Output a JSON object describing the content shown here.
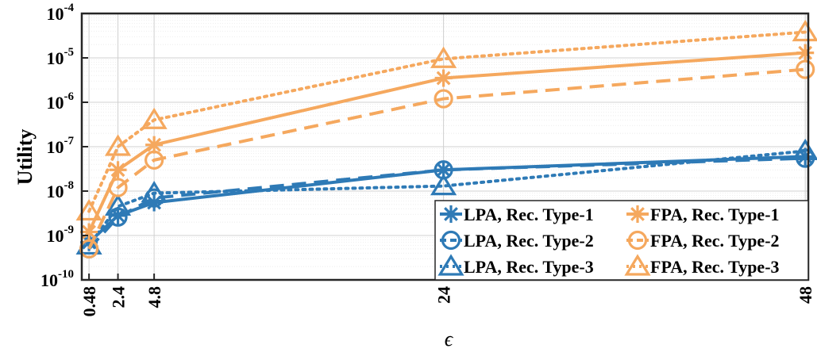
{
  "chart_data": {
    "type": "line",
    "xlabel": "ϵ",
    "ylabel": "Utility",
    "x_scale": "linear",
    "y_scale": "log",
    "xlim": [
      0,
      48.2
    ],
    "ylim": [
      1e-10,
      0.0001
    ],
    "grid": true,
    "x_ticks": [
      0.48,
      2.4,
      4.8,
      24,
      48
    ],
    "x_tick_labels": [
      "0.48",
      "2.4",
      "4.8",
      "24",
      "48"
    ],
    "y_ticks": [
      1e-10,
      1e-09,
      1e-08,
      1e-07,
      1e-06,
      1e-05,
      0.0001
    ],
    "y_tick_labels": [
      {
        "base": "10",
        "exp": "-10"
      },
      {
        "base": "10",
        "exp": "-9"
      },
      {
        "base": "10",
        "exp": "-8"
      },
      {
        "base": "10",
        "exp": "-7"
      },
      {
        "base": "10",
        "exp": "-6"
      },
      {
        "base": "10",
        "exp": "-5"
      },
      {
        "base": "10",
        "exp": "-4"
      }
    ],
    "legend_position": "bottom-right",
    "x": [
      0.48,
      2.4,
      4.8,
      24,
      48
    ],
    "series": [
      {
        "name": "LPA, Rec. Type-1",
        "color": "#2e7ab6",
        "line": "solid",
        "marker": "asterisk",
        "values": [
          7e-10,
          2.8e-09,
          5.5e-09,
          3e-08,
          6e-08
        ]
      },
      {
        "name": "LPA, Rec. Type-2",
        "color": "#2e7ab6",
        "line": "dashed",
        "marker": "circle",
        "values": [
          5e-10,
          2.6e-09,
          7e-09,
          3e-08,
          5.5e-08
        ]
      },
      {
        "name": "LPA, Rec. Type-3",
        "color": "#2e7ab6",
        "line": "dotted",
        "marker": "triangle",
        "values": [
          6e-10,
          4.5e-09,
          9e-09,
          1.3e-08,
          8e-08
        ]
      },
      {
        "name": "FPA, Rec. Type-1",
        "color": "#f5a85e",
        "line": "solid",
        "marker": "asterisk",
        "values": [
          1.2e-09,
          3e-08,
          1.1e-07,
          3.5e-06,
          1.3e-05
        ]
      },
      {
        "name": "FPA, Rec. Type-2",
        "color": "#f5a85e",
        "line": "dashed",
        "marker": "circle",
        "values": [
          5e-10,
          1.2e-08,
          5e-08,
          1.2e-06,
          5.5e-06
        ]
      },
      {
        "name": "FPA, Rec. Type-3",
        "color": "#f5a85e",
        "line": "dotted",
        "marker": "triangle",
        "values": [
          3.5e-09,
          1e-07,
          4e-07,
          9.5e-06,
          3.8e-05
        ]
      }
    ]
  }
}
